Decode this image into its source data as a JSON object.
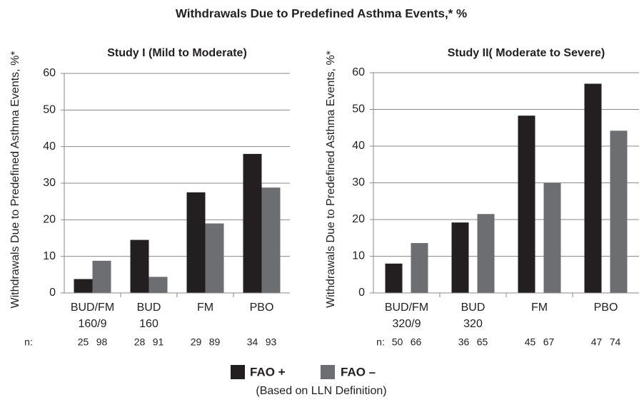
{
  "title": "Withdrawals Due to Predefined Asthma Events,* %",
  "legend_note": "(Based on LLN Definition)",
  "chart_data": [
    {
      "type": "bar",
      "title": "Study I (Mild to Moderate)",
      "y_label": "Withdrawals Due to Predefined Asthma Events, %*",
      "categories": [
        "BUD/FM 160/9",
        "BUD 160",
        "FM",
        "PBO"
      ],
      "n_label": "n:",
      "n": [
        [
          25,
          98
        ],
        [
          28,
          91
        ],
        [
          29,
          89
        ],
        [
          34,
          93
        ]
      ],
      "series": [
        {
          "name": "FAO +",
          "color": "#231f20",
          "values": [
            3.8,
            14.5,
            27.5,
            38
          ]
        },
        {
          "name": "FAO –",
          "color": "#6d6e71",
          "values": [
            8.8,
            4.4,
            19,
            28.8
          ]
        }
      ],
      "ylim": [
        0,
        60
      ],
      "yticks": [
        0,
        10,
        20,
        30,
        40,
        50,
        60
      ],
      "grid": true
    },
    {
      "type": "bar",
      "title": "Study II( Moderate to Severe)",
      "y_label": "Withdrawals Due to Predefined Asthma Events, %*",
      "categories": [
        "BUD/FM 320/9",
        "BUD 320",
        "FM",
        "PBO"
      ],
      "n_label": "n:",
      "n": [
        [
          50,
          66
        ],
        [
          36,
          65
        ],
        [
          45,
          67
        ],
        [
          47,
          74
        ]
      ],
      "series": [
        {
          "name": "FAO +",
          "color": "#231f20",
          "values": [
            8,
            19.2,
            48.3,
            57
          ]
        },
        {
          "name": "FAO –",
          "color": "#6d6e71",
          "values": [
            13.6,
            21.5,
            30,
            44.2
          ]
        }
      ],
      "ylim": [
        0,
        60
      ],
      "yticks": [
        0,
        10,
        20,
        30,
        40,
        50,
        60
      ],
      "grid": true
    }
  ]
}
